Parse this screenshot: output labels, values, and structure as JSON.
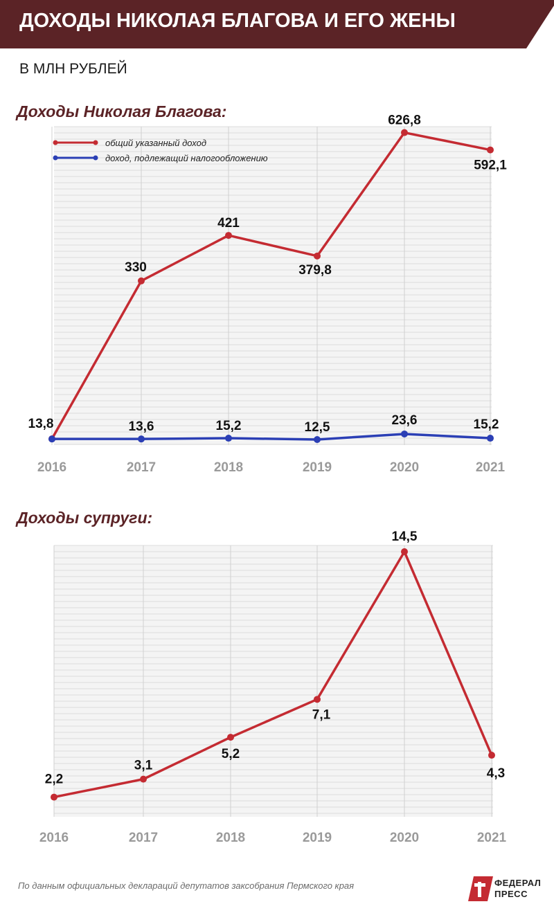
{
  "header": {
    "title": "ДОХОДЫ НИКОЛАЯ БЛАГОВА И ЕГО ЖЕНЫ",
    "units": "В МЛН РУБЛЕЙ"
  },
  "colors": {
    "banner": "#5b2326",
    "red_series": "#c42b32",
    "blue_series": "#2b3fb5",
    "title_color": "#5b2326"
  },
  "chart_data": [
    {
      "type": "line",
      "title": "Доходы Николая Благова:",
      "x": [
        "2016",
        "2017",
        "2018",
        "2019",
        "2020",
        "2021"
      ],
      "series": [
        {
          "name": "общий указанный доход",
          "values": [
            13.8,
            330,
            421,
            379.8,
            626.8,
            592.1
          ],
          "labels": [
            "13,8",
            "330",
            "421",
            "379,8",
            "626,8",
            "592,1"
          ]
        },
        {
          "name": "доход, подлежащий налогообложению",
          "values": [
            13.6,
            13.6,
            15.2,
            12.5,
            23.6,
            15.2
          ],
          "labels": [
            "",
            "13,6",
            "15,2",
            "12,5",
            "23,6",
            "15,2"
          ]
        }
      ],
      "ylim": [
        0,
        640
      ],
      "grid": true,
      "legend": "top-left"
    },
    {
      "type": "line",
      "title": "Доходы супруги:",
      "x": [
        "2016",
        "2017",
        "2018",
        "2019",
        "2020",
        "2021"
      ],
      "series": [
        {
          "values": [
            2.2,
            3.1,
            5.2,
            7.1,
            14.5,
            4.3
          ],
          "labels": [
            "2,2",
            "3,1",
            "5,2",
            "7,1",
            "14,5",
            "4,3"
          ]
        }
      ],
      "ylim": [
        0,
        15
      ],
      "grid": true
    }
  ],
  "footer": {
    "source": "По данным официальных деклараций депутатов заксобрания Пермского края",
    "logo_line1": "ФЕДЕРАЛ",
    "logo_line2": "ПРЕСС"
  }
}
